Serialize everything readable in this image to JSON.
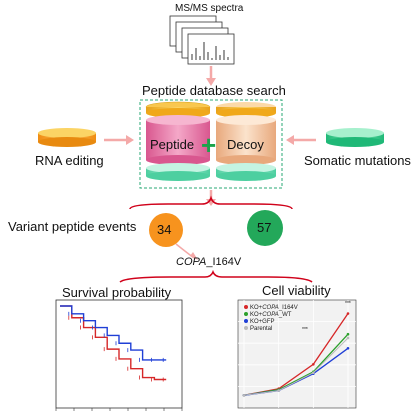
{
  "ms_label": "MS/MS spectra",
  "search_title": "Peptide database search",
  "peptide_label": "Peptide",
  "plus_sign": "+",
  "decoy_label": "Decoy",
  "rna_label": "RNA editing",
  "somatic_label": "Somatic mutations",
  "variant_label": "Variant peptide events",
  "count_rna": "34",
  "count_somatic": "57",
  "gene_italic": "COPA",
  "gene_suffix": "_I164V",
  "survival_title": "Survival probability",
  "viability_title": "Cell viability",
  "legend": [
    {
      "pre": "KO+",
      "ital": "COPA",
      "post": "_I164V",
      "color": "#d62728"
    },
    {
      "pre": "KO+",
      "ital": "COPA",
      "post": "_WT",
      "color": "#2ca02c"
    },
    {
      "pre": "KO+GFP",
      "ital": "",
      "post": "",
      "color": "#1f3fd6"
    },
    {
      "pre": "Parental",
      "ital": "",
      "post": "",
      "color": "#bbbbbb"
    }
  ],
  "significance_marks": [
    "***",
    "***"
  ],
  "colors": {
    "rna_cylinder": "#f5a623",
    "somatic_cylinder": "#2ecc8a",
    "peptide_cylinder": "#e879a8",
    "decoy_cylinder": "#f5c9a0",
    "bottom_cylinders": "#7de0c4",
    "plus": "#1aa34a",
    "orange_circle": "#f7931e",
    "green_circle": "#23a85a",
    "red_arrow": "#d0021b",
    "pink_arrow": "#f4a9a8"
  },
  "chart_data": [
    {
      "type": "line",
      "title": "Survival probability",
      "series": [
        {
          "x": [
            0,
            0.1,
            0.2,
            0.3,
            0.4,
            0.5,
            0.6,
            0.7,
            0.8,
            0.9
          ],
          "y": [
            1.0,
            0.92,
            0.85,
            0.78,
            0.7,
            0.62,
            0.55,
            0.45,
            0.45,
            0.45
          ]
        },
        {
          "x": [
            0,
            0.1,
            0.2,
            0.3,
            0.4,
            0.5,
            0.6,
            0.7,
            0.8,
            0.9
          ],
          "y": [
            1.0,
            0.88,
            0.78,
            0.68,
            0.56,
            0.46,
            0.36,
            0.27,
            0.25,
            0.25
          ]
        }
      ]
    },
    {
      "type": "line",
      "title": "Cell viability",
      "categories": [
        0,
        1,
        2,
        3
      ],
      "series": [
        {
          "name": "KO+COPA_I164V",
          "values": [
            0.05,
            0.12,
            0.38,
            0.92
          ]
        },
        {
          "name": "KO+COPA_WT",
          "values": [
            0.05,
            0.11,
            0.3,
            0.7
          ]
        },
        {
          "name": "KO+GFP",
          "values": [
            0.05,
            0.1,
            0.28,
            0.55
          ]
        },
        {
          "name": "Parental",
          "values": [
            0.05,
            0.1,
            0.29,
            0.66
          ]
        }
      ]
    }
  ]
}
